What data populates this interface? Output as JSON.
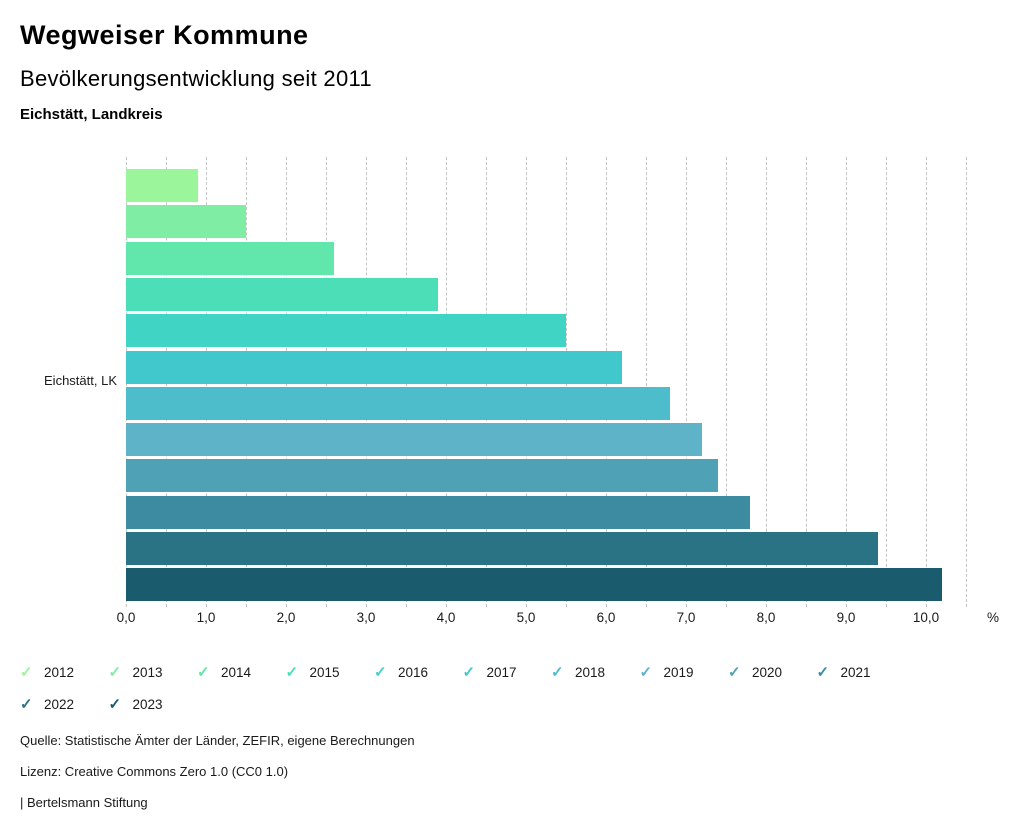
{
  "header": {
    "title": "Wegweiser Kommune",
    "subtitle": "Bevölkerungsentwicklung seit 2011",
    "region": "Eichstätt, Landkreis"
  },
  "chart_data": {
    "type": "bar",
    "orientation": "horizontal",
    "title": "Bevölkerungsentwicklung seit 2011",
    "group_label": "Eichstätt, LK",
    "categories": [
      "2012",
      "2013",
      "2014",
      "2015",
      "2016",
      "2017",
      "2018",
      "2019",
      "2020",
      "2021",
      "2022",
      "2023"
    ],
    "values": [
      0.9,
      1.5,
      2.6,
      3.9,
      5.5,
      6.2,
      6.8,
      7.2,
      7.4,
      7.8,
      9.4,
      10.2
    ],
    "colors": [
      "#9bf59b",
      "#7feda4",
      "#61e6ab",
      "#4cdeb7",
      "#40d4c4",
      "#41c8cd",
      "#4dbccb",
      "#5fb3c8",
      "#4fa2b6",
      "#3c8ba0",
      "#2a7385",
      "#1a5b6e"
    ],
    "xlabel": "%",
    "xlim": [
      0,
      10.5
    ],
    "grid": true,
    "grid_step": 0.5,
    "tick_step": 1.0,
    "x_tick_labels": [
      "0,0",
      "1,0",
      "2,0",
      "3,0",
      "4,0",
      "5,0",
      "6,0",
      "7,0",
      "8,0",
      "9,0",
      "10,0"
    ],
    "legend_position": "bottom",
    "legend_marker": "check-icon"
  },
  "footer": {
    "source": "Quelle: Statistische Ämter der Länder, ZEFIR, eigene Berechnungen",
    "license": "Lizenz: Creative Commons Zero 1.0 (CC0 1.0)",
    "attribution": "| Bertelsmann Stiftung"
  }
}
